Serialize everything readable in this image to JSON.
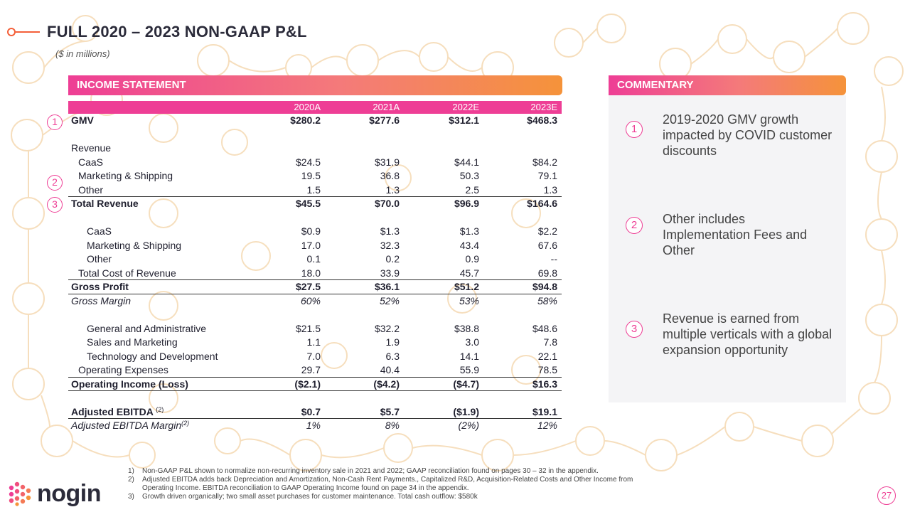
{
  "title": "FULL 2020 – 2023 NON-GAAP P&L",
  "units_note": "($ in millions)",
  "income_statement": {
    "banner": "INCOME STATEMENT",
    "columns": [
      "2020A",
      "2021A",
      "2022E",
      "2023E"
    ],
    "rows": [
      {
        "label": "GMV",
        "values": [
          "$280.2",
          "$277.6",
          "$312.1",
          "$468.3"
        ]
      },
      {
        "label": "Revenue"
      },
      {
        "label": "CaaS",
        "values": [
          "$24.5",
          "$31.9",
          "$44.1",
          "$84.2"
        ]
      },
      {
        "label": "Marketing & Shipping",
        "values": [
          "19.5",
          "36.8",
          "50.3",
          "79.1"
        ]
      },
      {
        "label": "Other",
        "values": [
          "1.5",
          "1.3",
          "2.5",
          "1.3"
        ]
      },
      {
        "label": "Total Revenue",
        "values": [
          "$45.5",
          "$70.0",
          "$96.9",
          "$164.6"
        ]
      },
      {
        "label": "CaaS",
        "values": [
          "$0.9",
          "$1.3",
          "$1.3",
          "$2.2"
        ]
      },
      {
        "label": "Marketing & Shipping",
        "values": [
          "17.0",
          "32.3",
          "43.4",
          "67.6"
        ]
      },
      {
        "label": "Other",
        "values": [
          "0.1",
          "0.2",
          "0.9",
          "--"
        ]
      },
      {
        "label": "Total Cost of Revenue",
        "values": [
          "18.0",
          "33.9",
          "45.7",
          "69.8"
        ]
      },
      {
        "label": "Gross Profit",
        "values": [
          "$27.5",
          "$36.1",
          "$51.2",
          "$94.8"
        ]
      },
      {
        "label": "Gross Margin",
        "values": [
          "60%",
          "52%",
          "53%",
          "58%"
        ]
      },
      {
        "label": "General and Administrative",
        "values": [
          "$21.5",
          "$32.2",
          "$38.8",
          "$48.6"
        ]
      },
      {
        "label": "Sales and Marketing",
        "values": [
          "1.1",
          "1.9",
          "3.0",
          "7.8"
        ]
      },
      {
        "label": "Technology and Development",
        "values": [
          "7.0",
          "6.3",
          "14.1",
          "22.1"
        ]
      },
      {
        "label": "Operating Expenses",
        "values": [
          "29.7",
          "40.4",
          "55.9",
          "78.5"
        ]
      },
      {
        "label": "Operating Income (Loss)",
        "values": [
          "($2.1)",
          "($4.2)",
          "($4.7)",
          "$16.3"
        ]
      },
      {
        "label": "Adjusted EBITDA",
        "note": "(2)",
        "values": [
          "$0.7",
          "$5.7",
          "($1.9)",
          "$19.1"
        ]
      },
      {
        "label": "Adjusted EBITDA Margin",
        "note": "(2)",
        "values": [
          "1%",
          "8%",
          "(2%)",
          "12%"
        ]
      }
    ],
    "markers": [
      "1",
      "2",
      "3"
    ]
  },
  "commentary": {
    "banner": "COMMENTARY",
    "items": [
      {
        "num": "1",
        "text": "2019-2020 GMV growth impacted by COVID customer discounts"
      },
      {
        "num": "2",
        "text": "Other includes Implementation Fees and Other"
      },
      {
        "num": "3",
        "text": "Revenue is earned from multiple verticals with a global expansion opportunity"
      }
    ]
  },
  "footnotes": [
    {
      "num": "1)",
      "text": "Non-GAAP P&L shown to normalize non-recurring inventory sale in 2021 and 2022; GAAP reconciliation found on pages 30 – 32 in the appendix."
    },
    {
      "num": "2)",
      "text": "Adjusted EBITDA adds back Depreciation and Amortization, Non-Cash Rent Payments., Capitalized R&D, Acquisition-Related Costs and Other Income from Operating Income. EBITDA reconciliation to GAAP Operating Income found on page 34 in the appendix."
    },
    {
      "num": "3)",
      "text": "Growth driven organically; two small asset purchases for customer maintenance. Total cash outflow: $580k"
    }
  ],
  "logo": {
    "text": "nogin"
  },
  "page_number": "27",
  "colors": {
    "accent_pink": "#ee3e95",
    "accent_orange": "#f5933a",
    "ring": "#f3c98a"
  }
}
